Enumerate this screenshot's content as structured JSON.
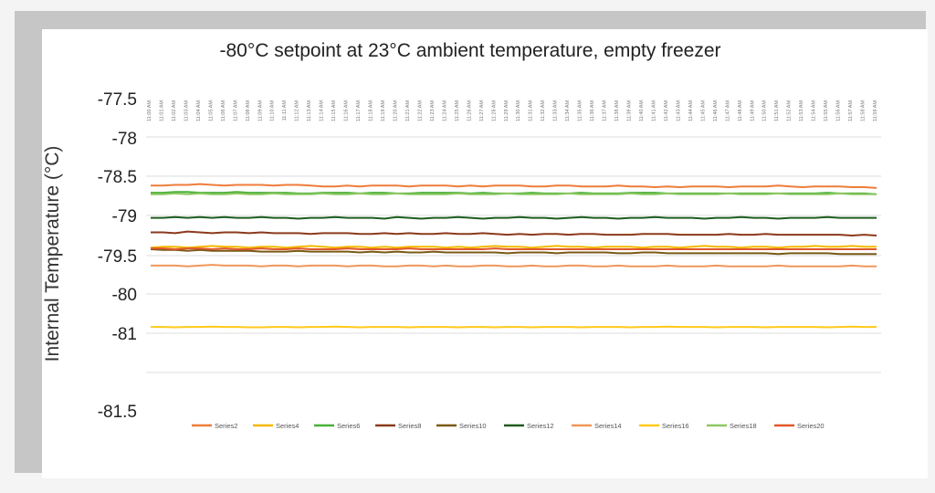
{
  "colors": {
    "Series2": "#ee7d3b",
    "Series4": "#f5b800",
    "Series6": "#4caf3c",
    "Series8": "#8b3a1d",
    "Series10": "#7a5a14",
    "Series12": "#1e5e20",
    "Series14": "#f0975a",
    "Series16": "#ffc91a",
    "Series18": "#8cc860",
    "Series20": "#e0582b"
  },
  "chart_data": {
    "type": "line",
    "title": "-80°C setpoint at 23°C ambient temperature, empty freezer",
    "xlabel": "",
    "ylabel": "Internal Temperature (°C)",
    "ylim": [
      -81.5,
      -77.5
    ],
    "yticks": [
      "-77.5",
      "-78",
      "-78.5",
      "-79",
      "-79.5",
      "-80",
      "-81",
      "-81.5"
    ],
    "grid": true,
    "legend_position": "bottom",
    "categories": [
      "11:00 AM",
      "11:01 AM",
      "11:02 AM",
      "11:03 AM",
      "11:04 AM",
      "11:05 AM",
      "11:06 AM",
      "11:07 AM",
      "11:08 AM",
      "11:09 AM",
      "11:10 AM",
      "11:11 AM",
      "11:12 AM",
      "11:13 AM",
      "11:14 AM",
      "11:15 AM",
      "11:16 AM",
      "11:17 AM",
      "11:18 AM",
      "11:19 AM",
      "11:20 AM",
      "11:21 AM",
      "11:22 AM",
      "11:23 AM",
      "11:24 AM",
      "11:25 AM",
      "11:26 AM",
      "11:27 AM",
      "11:28 AM",
      "11:29 AM",
      "11:30 AM",
      "11:31 AM",
      "11:32 AM",
      "11:33 AM",
      "11:34 AM",
      "11:35 AM",
      "11:36 AM",
      "11:37 AM",
      "11:38 AM",
      "11:39 AM",
      "11:40 AM",
      "11:41 AM",
      "11:42 AM",
      "11:43 AM",
      "11:44 AM",
      "11:45 AM",
      "11:46 AM",
      "11:47 AM",
      "11:48 AM",
      "11:49 AM",
      "11:50 AM",
      "11:51 AM",
      "11:52 AM",
      "11:53 AM",
      "11:54 AM",
      "11:55 AM",
      "11:56 AM",
      "11:57 AM",
      "11:58 AM",
      "11:59 AM"
    ],
    "series": [
      {
        "name": "Series2",
        "values": [
          -78.62,
          -78.62,
          -78.61,
          -78.61,
          -78.6,
          -78.61,
          -78.62,
          -78.61,
          -78.61,
          -78.61,
          -78.62,
          -78.61,
          -78.61,
          -78.62,
          -78.63,
          -78.63,
          -78.62,
          -78.63,
          -78.62,
          -78.62,
          -78.62,
          -78.63,
          -78.62,
          -78.62,
          -78.62,
          -78.63,
          -78.62,
          -78.63,
          -78.62,
          -78.62,
          -78.62,
          -78.63,
          -78.63,
          -78.62,
          -78.62,
          -78.63,
          -78.63,
          -78.63,
          -78.62,
          -78.63,
          -78.63,
          -78.64,
          -78.63,
          -78.64,
          -78.63,
          -78.63,
          -78.63,
          -78.64,
          -78.63,
          -78.63,
          -78.63,
          -78.62,
          -78.63,
          -78.64,
          -78.63,
          -78.63,
          -78.63,
          -78.64,
          -78.64,
          -78.65
        ]
      },
      {
        "name": "Series4",
        "values": [
          -79.4,
          -79.39,
          -79.39,
          -79.4,
          -79.39,
          -79.38,
          -79.39,
          -79.39,
          -79.4,
          -79.39,
          -79.39,
          -79.4,
          -79.39,
          -79.38,
          -79.39,
          -79.4,
          -79.39,
          -79.39,
          -79.4,
          -79.39,
          -79.4,
          -79.39,
          -79.39,
          -79.39,
          -79.4,
          -79.39,
          -79.4,
          -79.39,
          -79.38,
          -79.39,
          -79.39,
          -79.4,
          -79.39,
          -79.38,
          -79.39,
          -79.39,
          -79.4,
          -79.39,
          -79.39,
          -79.39,
          -79.4,
          -79.39,
          -79.39,
          -79.4,
          -79.39,
          -79.38,
          -79.39,
          -79.39,
          -79.4,
          -79.39,
          -79.39,
          -79.4,
          -79.39,
          -79.39,
          -79.38,
          -79.39,
          -79.39,
          -79.38,
          -79.39,
          -79.39
        ]
      },
      {
        "name": "Series6",
        "values": [
          -78.71,
          -78.71,
          -78.7,
          -78.7,
          -78.71,
          -78.71,
          -78.71,
          -78.7,
          -78.71,
          -78.71,
          -78.71,
          -78.71,
          -78.72,
          -78.72,
          -78.71,
          -78.71,
          -78.71,
          -78.72,
          -78.71,
          -78.71,
          -78.72,
          -78.72,
          -78.71,
          -78.71,
          -78.71,
          -78.71,
          -78.72,
          -78.71,
          -78.72,
          -78.72,
          -78.72,
          -78.71,
          -78.72,
          -78.72,
          -78.72,
          -78.71,
          -78.72,
          -78.72,
          -78.72,
          -78.71,
          -78.71,
          -78.71,
          -78.72,
          -78.72,
          -78.72,
          -78.72,
          -78.72,
          -78.72,
          -78.72,
          -78.72,
          -78.72,
          -78.72,
          -78.72,
          -78.72,
          -78.72,
          -78.71,
          -78.72,
          -78.72,
          -78.72,
          -78.73
        ]
      },
      {
        "name": "Series8",
        "values": [
          -79.21,
          -79.21,
          -79.22,
          -79.2,
          -79.21,
          -79.22,
          -79.21,
          -79.21,
          -79.22,
          -79.21,
          -79.22,
          -79.22,
          -79.22,
          -79.23,
          -79.22,
          -79.22,
          -79.22,
          -79.23,
          -79.23,
          -79.22,
          -79.23,
          -79.22,
          -79.23,
          -79.23,
          -79.22,
          -79.23,
          -79.23,
          -79.22,
          -79.23,
          -79.24,
          -79.23,
          -79.24,
          -79.23,
          -79.23,
          -79.24,
          -79.23,
          -79.23,
          -79.24,
          -79.24,
          -79.24,
          -79.23,
          -79.23,
          -79.23,
          -79.24,
          -79.24,
          -79.24,
          -79.24,
          -79.23,
          -79.24,
          -79.24,
          -79.23,
          -79.24,
          -79.24,
          -79.24,
          -79.24,
          -79.24,
          -79.24,
          -79.25,
          -79.24,
          -79.25
        ]
      },
      {
        "name": "Series10",
        "values": [
          -79.42,
          -79.43,
          -79.43,
          -79.44,
          -79.43,
          -79.44,
          -79.44,
          -79.44,
          -79.44,
          -79.45,
          -79.45,
          -79.45,
          -79.44,
          -79.45,
          -79.45,
          -79.45,
          -79.45,
          -79.46,
          -79.45,
          -79.46,
          -79.45,
          -79.46,
          -79.46,
          -79.45,
          -79.46,
          -79.46,
          -79.46,
          -79.46,
          -79.46,
          -79.47,
          -79.46,
          -79.46,
          -79.46,
          -79.47,
          -79.46,
          -79.46,
          -79.46,
          -79.46,
          -79.47,
          -79.47,
          -79.46,
          -79.46,
          -79.47,
          -79.47,
          -79.47,
          -79.47,
          -79.47,
          -79.47,
          -79.47,
          -79.47,
          -79.47,
          -79.48,
          -79.47,
          -79.47,
          -79.47,
          -79.47,
          -79.48,
          -79.48,
          -79.48,
          -79.48
        ]
      },
      {
        "name": "Series12",
        "values": [
          -79.03,
          -79.03,
          -79.02,
          -79.03,
          -79.02,
          -79.03,
          -79.02,
          -79.03,
          -79.03,
          -79.02,
          -79.03,
          -79.03,
          -79.04,
          -79.03,
          -79.03,
          -79.02,
          -79.03,
          -79.03,
          -79.03,
          -79.04,
          -79.02,
          -79.03,
          -79.04,
          -79.03,
          -79.03,
          -79.02,
          -79.03,
          -79.04,
          -79.03,
          -79.03,
          -79.02,
          -79.03,
          -79.03,
          -79.04,
          -79.03,
          -79.02,
          -79.03,
          -79.03,
          -79.04,
          -79.03,
          -79.03,
          -79.02,
          -79.03,
          -79.03,
          -79.03,
          -79.04,
          -79.03,
          -79.03,
          -79.02,
          -79.03,
          -79.03,
          -79.04,
          -79.03,
          -79.03,
          -79.03,
          -79.02,
          -79.03,
          -79.03,
          -79.03,
          -79.03
        ]
      },
      {
        "name": "Series14",
        "values": [
          -79.63,
          -79.63,
          -79.63,
          -79.64,
          -79.63,
          -79.62,
          -79.63,
          -79.63,
          -79.63,
          -79.64,
          -79.63,
          -79.63,
          -79.64,
          -79.63,
          -79.63,
          -79.63,
          -79.64,
          -79.63,
          -79.63,
          -79.64,
          -79.64,
          -79.63,
          -79.63,
          -79.64,
          -79.63,
          -79.64,
          -79.64,
          -79.63,
          -79.63,
          -79.64,
          -79.64,
          -79.63,
          -79.64,
          -79.64,
          -79.63,
          -79.63,
          -79.64,
          -79.64,
          -79.63,
          -79.64,
          -79.64,
          -79.64,
          -79.63,
          -79.64,
          -79.64,
          -79.64,
          -79.63,
          -79.64,
          -79.64,
          -79.64,
          -79.64,
          -79.63,
          -79.64,
          -79.64,
          -79.64,
          -79.64,
          -79.64,
          -79.63,
          -79.64,
          -79.64
        ]
      },
      {
        "name": "Series16",
        "values": [
          -80.84,
          -80.84,
          -80.85,
          -80.84,
          -80.84,
          -80.83,
          -80.84,
          -80.84,
          -80.85,
          -80.85,
          -80.84,
          -80.84,
          -80.85,
          -80.84,
          -80.84,
          -80.83,
          -80.84,
          -80.85,
          -80.84,
          -80.84,
          -80.84,
          -80.85,
          -80.84,
          -80.84,
          -80.84,
          -80.85,
          -80.84,
          -80.84,
          -80.85,
          -80.84,
          -80.84,
          -80.85,
          -80.84,
          -80.84,
          -80.84,
          -80.85,
          -80.84,
          -80.84,
          -80.84,
          -80.85,
          -80.84,
          -80.84,
          -80.83,
          -80.84,
          -80.84,
          -80.84,
          -80.85,
          -80.84,
          -80.84,
          -80.84,
          -80.85,
          -80.84,
          -80.84,
          -80.84,
          -80.84,
          -80.85,
          -80.84,
          -80.83,
          -80.84,
          -80.84
        ]
      },
      {
        "name": "Series18",
        "values": [
          -78.73,
          -78.73,
          -78.72,
          -78.73,
          -78.72,
          -78.73,
          -78.73,
          -78.72,
          -78.73,
          -78.73,
          -78.72,
          -78.73,
          -78.73,
          -78.73,
          -78.72,
          -78.73,
          -78.73,
          -78.72,
          -78.73,
          -78.73,
          -78.72,
          -78.73,
          -78.73,
          -78.73,
          -78.73,
          -78.72,
          -78.73,
          -78.73,
          -78.73,
          -78.72,
          -78.73,
          -78.73,
          -78.73,
          -78.73,
          -78.72,
          -78.73,
          -78.73,
          -78.73,
          -78.73,
          -78.72,
          -78.73,
          -78.73,
          -78.72,
          -78.73,
          -78.73,
          -78.73,
          -78.73,
          -78.72,
          -78.73,
          -78.73,
          -78.73,
          -78.72,
          -78.73,
          -78.73,
          -78.73,
          -78.73,
          -78.72,
          -78.73,
          -78.73,
          -78.73
        ]
      },
      {
        "name": "Series20",
        "values": [
          -79.41,
          -79.41,
          -79.42,
          -79.41,
          -79.41,
          -79.42,
          -79.41,
          -79.42,
          -79.42,
          -79.41,
          -79.42,
          -79.42,
          -79.41,
          -79.42,
          -79.42,
          -79.42,
          -79.41,
          -79.42,
          -79.42,
          -79.42,
          -79.42,
          -79.41,
          -79.42,
          -79.42,
          -79.42,
          -79.42,
          -79.42,
          -79.42,
          -79.41,
          -79.42,
          -79.42,
          -79.42,
          -79.42,
          -79.42,
          -79.42,
          -79.42,
          -79.42,
          -79.42,
          -79.42,
          -79.42,
          -79.42,
          -79.42,
          -79.42,
          -79.42,
          -79.42,
          -79.42,
          -79.42,
          -79.42,
          -79.42,
          -79.42,
          -79.42,
          -79.42,
          -79.42,
          -79.42,
          -79.42,
          -79.42,
          -79.42,
          -79.42,
          -79.42,
          -79.42
        ]
      }
    ]
  }
}
